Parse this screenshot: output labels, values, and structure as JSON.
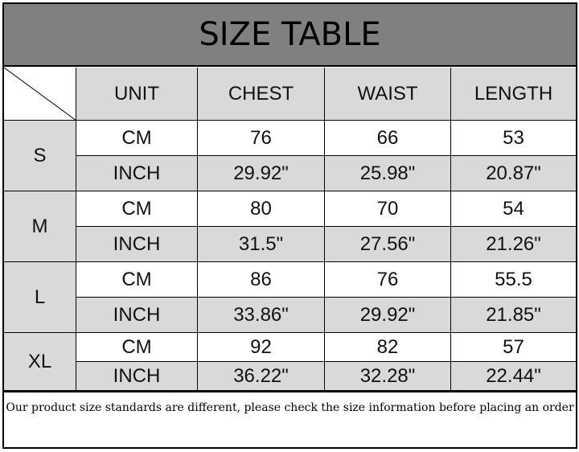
{
  "title": "SIZE TABLE",
  "headers": [
    "UNIT",
    "CHEST",
    "WAIST",
    "LENGTH"
  ],
  "rows": [
    {
      "size": "S",
      "cm": {
        "unit": "CM",
        "values": [
          "76",
          "66",
          "53"
        ]
      },
      "inch": {
        "unit": "INCH",
        "values": [
          "29.92\"",
          "25.98\"",
          "20.87\""
        ]
      }
    },
    {
      "size": "M",
      "cm": {
        "unit": "CM",
        "values": [
          "80",
          "70",
          "54"
        ]
      },
      "inch": {
        "unit": "INCH",
        "values": [
          "31.5\"",
          "27.56\"",
          "21.26\""
        ]
      }
    },
    {
      "size": "L",
      "cm": {
        "unit": "CM",
        "values": [
          "86",
          "76",
          "55.5"
        ]
      },
      "inch": {
        "unit": "INCH",
        "values": [
          "33.86\"",
          "29.92\"",
          "21.85\""
        ]
      }
    },
    {
      "size": "XL",
      "cm": {
        "unit": "CM",
        "values": [
          "92",
          "82",
          "57"
        ]
      },
      "inch": {
        "unit": "INCH",
        "values": [
          "36.22\"",
          "32.28\"",
          "22.44\""
        ]
      }
    }
  ],
  "note": "Our product size standards are different, please check the size information before placing an order",
  "colors": {
    "title_bg": "#808080",
    "header_bg": "#d9d9d9",
    "inch_row_bg": "#d9d9d9",
    "cm_row_bg": "#ffffff"
  }
}
